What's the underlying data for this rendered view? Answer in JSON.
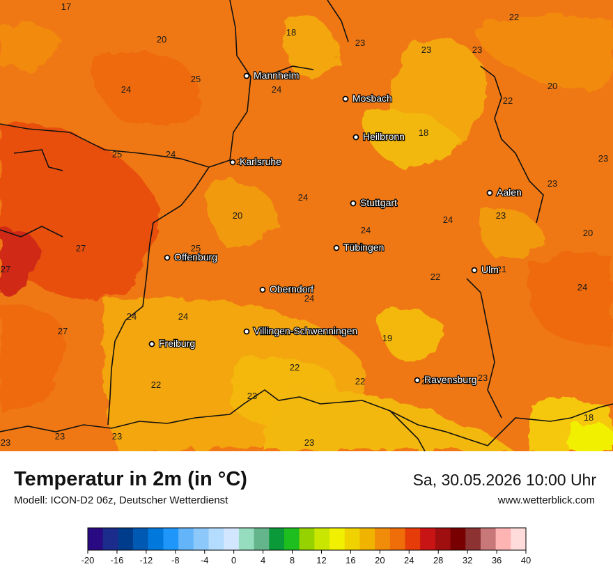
{
  "title": "Temperatur in 2m (in °C)",
  "model": "Modell: ICON-D2 06z, Deutscher Wetterdienst",
  "datetime": "Sa, 30.05.2026 10:00 Uhr",
  "website": "www.wetterblick.com",
  "cities": [
    {
      "name": "Mannheim"
    },
    {
      "name": "Mosbach"
    },
    {
      "name": "Heilbronn"
    },
    {
      "name": "Karlsruhe"
    },
    {
      "name": "Aalen"
    },
    {
      "name": "Stuttgart"
    },
    {
      "name": "Tübingen"
    },
    {
      "name": "Offenburg"
    },
    {
      "name": "Ulm"
    },
    {
      "name": "Oberndorf"
    },
    {
      "name": "Villingen-Schwenningen"
    },
    {
      "name": "Freiburg"
    },
    {
      "name": "Ravensburg"
    }
  ],
  "values": [
    "17",
    "18",
    "20",
    "23",
    "23",
    "23",
    "22",
    "25",
    "24",
    "24",
    "20",
    "22",
    "18",
    "25",
    "24",
    "24",
    "23",
    "24",
    "20",
    "23",
    "24",
    "24",
    "23",
    "20",
    "25",
    "27",
    "27",
    "22",
    "21",
    "24",
    "24",
    "24",
    "24",
    "27",
    "19",
    "22",
    "22",
    "22",
    "22",
    "23",
    "23",
    "23",
    "23",
    "23",
    "18",
    "23"
  ],
  "legend": {
    "ticks": [
      "-20",
      "-16",
      "-12",
      "-8",
      "-4",
      "0",
      "4",
      "8",
      "12",
      "16",
      "20",
      "24",
      "28",
      "32",
      "36",
      "40"
    ],
    "colors": [
      "#2a0a82",
      "#1c2c8c",
      "#003c8c",
      "#005ab4",
      "#0078dc",
      "#1e96fa",
      "#64b4fa",
      "#8cc8fa",
      "#b4dcff",
      "#d2e6ff",
      "#96dcbe",
      "#64b48c",
      "#0a9a3a",
      "#1ebe1e",
      "#96d200",
      "#c8e600",
      "#f0f000",
      "#f0d200",
      "#f0b400",
      "#f08c0a",
      "#f06e0a",
      "#e63c0a",
      "#c81414",
      "#a00f0f",
      "#780000",
      "#8c3232",
      "#c87878",
      "#ffb4b4",
      "#ffdcdc"
    ]
  }
}
